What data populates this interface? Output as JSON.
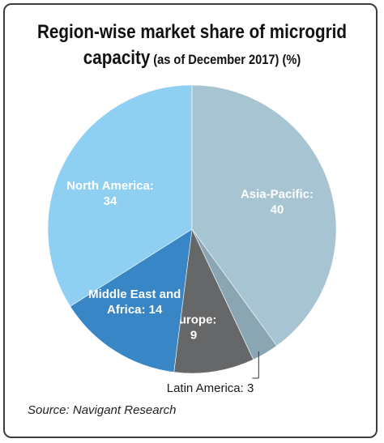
{
  "chart_data": {
    "type": "pie",
    "title": "Region-wise market share of microgrid",
    "subtitle_bold": "capacity",
    "subtitle_rest": "(as of December 2017) (%)",
    "unit": "%",
    "source": "Source: Navigant Research",
    "slices": [
      {
        "name": "North America",
        "value": 34,
        "color": "#8fd0f2",
        "label_lines": [
          "North America:",
          "34"
        ],
        "label_color": "#ffffff"
      },
      {
        "name": "Asia-Pacific",
        "value": 40,
        "color": "#a6c4d1",
        "label_lines": [
          "Asia-Pacific:",
          "40"
        ],
        "label_color": "#ffffff"
      },
      {
        "name": "Latin America",
        "value": 3,
        "color": "#8aa6b2",
        "label_lines": [
          "Latin America: 3"
        ],
        "label_color": "#1a1a1a",
        "outside": true
      },
      {
        "name": "Europe",
        "value": 9,
        "color": "#666769",
        "label_lines": [
          "Europe:",
          "9"
        ],
        "label_color": "#ffffff"
      },
      {
        "name": "Middle East and Africa",
        "value": 14,
        "color": "#3886c6",
        "label_lines": [
          "Middle East and",
          "Africa: 14"
        ],
        "label_color": "#ffffff"
      }
    ]
  }
}
